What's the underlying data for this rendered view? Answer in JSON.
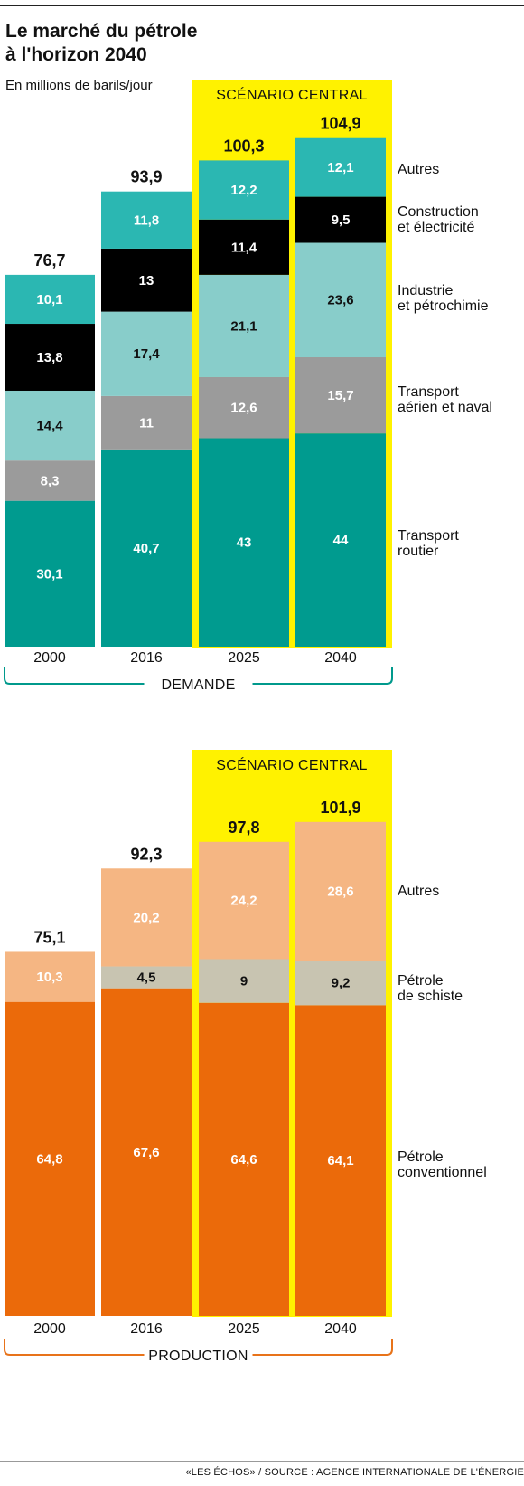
{
  "title_line1": "Le marché du pétrole",
  "title_line2": "à l'horizon 2040",
  "subtitle": "En millions de barils/jour",
  "source": "«LES ÉCHOS» / SOURCE : AGENCE INTERNATIONALE DE L'ÉNERGIE",
  "colors": {
    "scenario_bg": "#fff200",
    "teal_dark": "#009b8f",
    "grey": "#9b9b9b",
    "teal_light": "#88cdca",
    "black": "#000000",
    "turquoise": "#2bb7b2",
    "orange": "#eb6a0a",
    "beige": "#c8c4b1",
    "peach": "#f5b683",
    "demand_bracket": "#00998c",
    "production_bracket": "#e8731a"
  },
  "chart_data": [
    {
      "type": "bar",
      "stacked": true,
      "group_label": "DEMANDE",
      "scenario_label": "SCÉNARIO CENTRAL",
      "categories": [
        "2000",
        "2016",
        "2025",
        "2040"
      ],
      "totals": [
        "76,7",
        "93,9",
        "100,3",
        "104,9"
      ],
      "total_values": [
        76.7,
        93.9,
        100.3,
        104.9
      ],
      "series": [
        {
          "name": "Transport routier",
          "values": [
            30.1,
            40.7,
            43,
            44
          ],
          "labels": [
            "30,1",
            "40,7",
            "43",
            "44"
          ],
          "color": "#009b8f",
          "text_color": "#ffffff"
        },
        {
          "name": "Transport aérien et naval",
          "values": [
            8.3,
            11,
            12.6,
            15.7
          ],
          "labels": [
            "8,3",
            "11",
            "12,6",
            "15,7"
          ],
          "color": "#9b9b9b",
          "text_color": "#ffffff"
        },
        {
          "name": "Industrie et pétrochimie",
          "values": [
            14.4,
            17.4,
            21.1,
            23.6
          ],
          "labels": [
            "14,4",
            "17,4",
            "21,1",
            "23,6"
          ],
          "color": "#88cdca",
          "text_color": "#111111"
        },
        {
          "name": "Construction et électricité",
          "values": [
            13.8,
            13,
            11.4,
            9.5
          ],
          "labels": [
            "13,8",
            "13",
            "11,4",
            "9,5"
          ],
          "color": "#000000",
          "text_color": "#ffffff"
        },
        {
          "name": "Autres",
          "values": [
            10.1,
            11.8,
            12.2,
            12.1
          ],
          "labels": [
            "10,1",
            "11,8",
            "12,2",
            "12,1"
          ],
          "color": "#2bb7b2",
          "text_color": "#ffffff"
        }
      ],
      "legend": [
        [
          "Autres"
        ],
        [
          "Construction",
          "et électricité"
        ],
        [
          "Industrie",
          "et pétrochimie"
        ],
        [
          "Transport",
          "aérien et naval"
        ],
        [
          "Transport",
          "routier"
        ]
      ],
      "unit": "En millions de barils/jour"
    },
    {
      "type": "bar",
      "stacked": true,
      "group_label": "PRODUCTION",
      "scenario_label": "SCÉNARIO CENTRAL",
      "categories": [
        "2000",
        "2016",
        "2025",
        "2040"
      ],
      "totals": [
        "75,1",
        "92,3",
        "97,8",
        "101,9"
      ],
      "total_values": [
        75.1,
        92.3,
        97.8,
        101.9
      ],
      "series": [
        {
          "name": "Pétrole conventionnel",
          "values": [
            64.8,
            67.6,
            64.6,
            64.1
          ],
          "labels": [
            "64,8",
            "67,6",
            "64,6",
            "64,1"
          ],
          "color": "#eb6a0a",
          "text_color": "#ffffff"
        },
        {
          "name": "Pétrole de schiste",
          "values": [
            0,
            4.5,
            9,
            9.2
          ],
          "labels": [
            "",
            "4,5",
            "9",
            "9,2"
          ],
          "color": "#c8c4b1",
          "text_color": "#111111"
        },
        {
          "name": "Autres",
          "values": [
            10.3,
            20.2,
            24.2,
            28.6
          ],
          "labels": [
            "10,3",
            "20,2",
            "24,2",
            "28,6"
          ],
          "color": "#f5b683",
          "text_color": "#ffffff"
        }
      ],
      "legend": [
        [
          "Autres"
        ],
        [
          "Pétrole",
          "de schiste"
        ],
        [
          "Pétrole",
          "conventionnel"
        ]
      ],
      "unit": "En millions de barils/jour"
    }
  ]
}
